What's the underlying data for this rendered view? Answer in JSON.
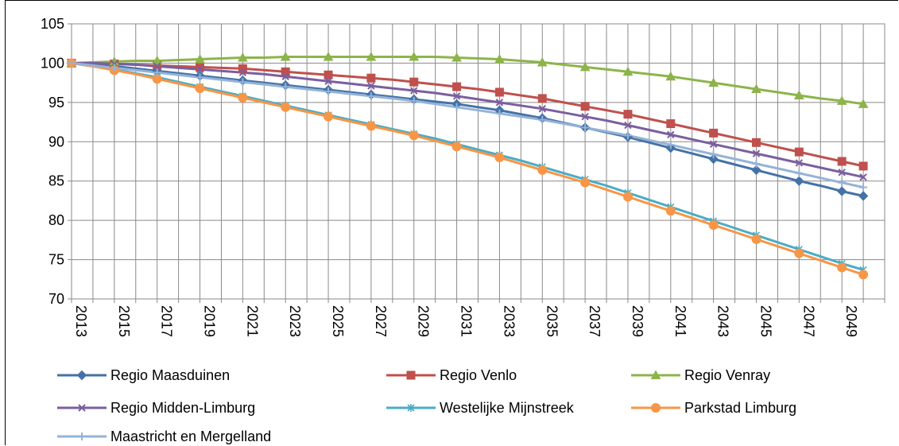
{
  "chart_data": {
    "type": "line",
    "x": [
      2013,
      2014,
      2015,
      2016,
      2017,
      2018,
      2019,
      2020,
      2021,
      2022,
      2023,
      2024,
      2025,
      2026,
      2027,
      2028,
      2029,
      2030,
      2031,
      2032,
      2033,
      2034,
      2035,
      2036,
      2037,
      2038,
      2039,
      2040,
      2041,
      2042,
      2043,
      2044,
      2045,
      2046,
      2047,
      2048,
      2049,
      2050
    ],
    "x_tick_labels": [
      "2013",
      "2015",
      "2017",
      "2019",
      "2021",
      "2023",
      "2025",
      "2027",
      "2029",
      "2031",
      "2033",
      "2035",
      "2037",
      "2039",
      "2041",
      "2043",
      "2045",
      "2047",
      "2049"
    ],
    "y_tick_labels": [
      "70",
      "75",
      "80",
      "85",
      "90",
      "95",
      "100",
      "105"
    ],
    "ylim": [
      70,
      105
    ],
    "grid": true,
    "legend_position": "bottom",
    "series": [
      {
        "name": "Regio Maasduinen",
        "color": "#4472A8",
        "marker": "diamond",
        "values": [
          100,
          99.9,
          99.6,
          99.3,
          99.0,
          98.7,
          98.4,
          98.1,
          97.8,
          97.5,
          97.2,
          96.9,
          96.6,
          96.3,
          96.0,
          95.7,
          95.4,
          95.1,
          94.8,
          94.4,
          94.0,
          93.5,
          93.0,
          92.4,
          91.8,
          91.2,
          90.6,
          89.9,
          89.2,
          88.5,
          87.8,
          87.1,
          86.4,
          85.7,
          85.0,
          84.4,
          83.7,
          83.1
        ]
      },
      {
        "name": "Regio Venlo",
        "color": "#C0504D",
        "marker": "square",
        "values": [
          100,
          100,
          99.9,
          99.8,
          99.7,
          99.6,
          99.5,
          99.4,
          99.3,
          99.1,
          98.9,
          98.7,
          98.5,
          98.3,
          98.1,
          97.9,
          97.6,
          97.3,
          97.0,
          96.7,
          96.3,
          95.9,
          95.5,
          95.0,
          94.5,
          94.0,
          93.5,
          92.9,
          92.3,
          91.7,
          91.1,
          90.5,
          89.9,
          89.3,
          88.7,
          88.1,
          87.5,
          86.9
        ]
      },
      {
        "name": "Regio Venray",
        "color": "#8DB44A",
        "marker": "triangle",
        "values": [
          100,
          100.1,
          100.2,
          100.3,
          100.3,
          100.4,
          100.5,
          100.6,
          100.7,
          100.7,
          100.8,
          100.8,
          100.8,
          100.8,
          100.8,
          100.8,
          100.8,
          100.8,
          100.7,
          100.6,
          100.5,
          100.3,
          100.1,
          99.8,
          99.5,
          99.2,
          98.9,
          98.6,
          98.3,
          97.9,
          97.5,
          97.1,
          96.7,
          96.3,
          95.9,
          95.5,
          95.2,
          94.8
        ]
      },
      {
        "name": "Regio Midden-Limburg",
        "color": "#7B5FA0",
        "marker": "x",
        "values": [
          100,
          100,
          99.9,
          99.8,
          99.6,
          99.4,
          99.2,
          99.0,
          98.8,
          98.6,
          98.3,
          98.0,
          97.7,
          97.4,
          97.1,
          96.8,
          96.5,
          96.2,
          95.8,
          95.4,
          95.0,
          94.6,
          94.2,
          93.7,
          93.2,
          92.7,
          92.1,
          91.5,
          90.9,
          90.3,
          89.7,
          89.1,
          88.5,
          87.9,
          87.3,
          86.7,
          86.1,
          85.5
        ]
      },
      {
        "name": "Westelijke Mijnstreek",
        "color": "#4BACC6",
        "marker": "asterisk",
        "values": [
          100,
          99.6,
          99.2,
          98.7,
          98.2,
          97.6,
          97.0,
          96.4,
          95.8,
          95.2,
          94.6,
          94.0,
          93.4,
          92.8,
          92.2,
          91.6,
          91.0,
          90.4,
          89.7,
          89.0,
          88.3,
          87.6,
          86.8,
          86.0,
          85.2,
          84.4,
          83.5,
          82.6,
          81.7,
          80.8,
          79.9,
          79.0,
          78.1,
          77.2,
          76.3,
          75.4,
          74.5,
          73.7
        ]
      },
      {
        "name": "Parkstad Limburg",
        "color": "#F79646",
        "marker": "circle",
        "values": [
          100,
          99.6,
          99.1,
          98.6,
          98.0,
          97.4,
          96.8,
          96.2,
          95.6,
          95.0,
          94.4,
          93.8,
          93.2,
          92.6,
          92.0,
          91.4,
          90.8,
          90.1,
          89.4,
          88.7,
          88.0,
          87.2,
          86.4,
          85.6,
          84.8,
          83.9,
          83.0,
          82.1,
          81.2,
          80.3,
          79.4,
          78.5,
          77.6,
          76.7,
          75.8,
          74.9,
          74.0,
          73.1
        ]
      },
      {
        "name": "Maastricht en Mergelland",
        "color": "#95B3D7",
        "marker": "plus",
        "values": [
          100,
          99.7,
          99.4,
          99.1,
          98.8,
          98.5,
          98.2,
          97.9,
          97.6,
          97.3,
          97.0,
          96.7,
          96.4,
          96.1,
          95.8,
          95.5,
          95.2,
          94.8,
          94.4,
          94.0,
          93.6,
          93.2,
          92.8,
          92.3,
          91.8,
          91.3,
          90.8,
          90.2,
          89.6,
          89.0,
          88.4,
          87.8,
          87.2,
          86.6,
          86.0,
          85.4,
          84.8,
          84.2
        ]
      }
    ]
  }
}
